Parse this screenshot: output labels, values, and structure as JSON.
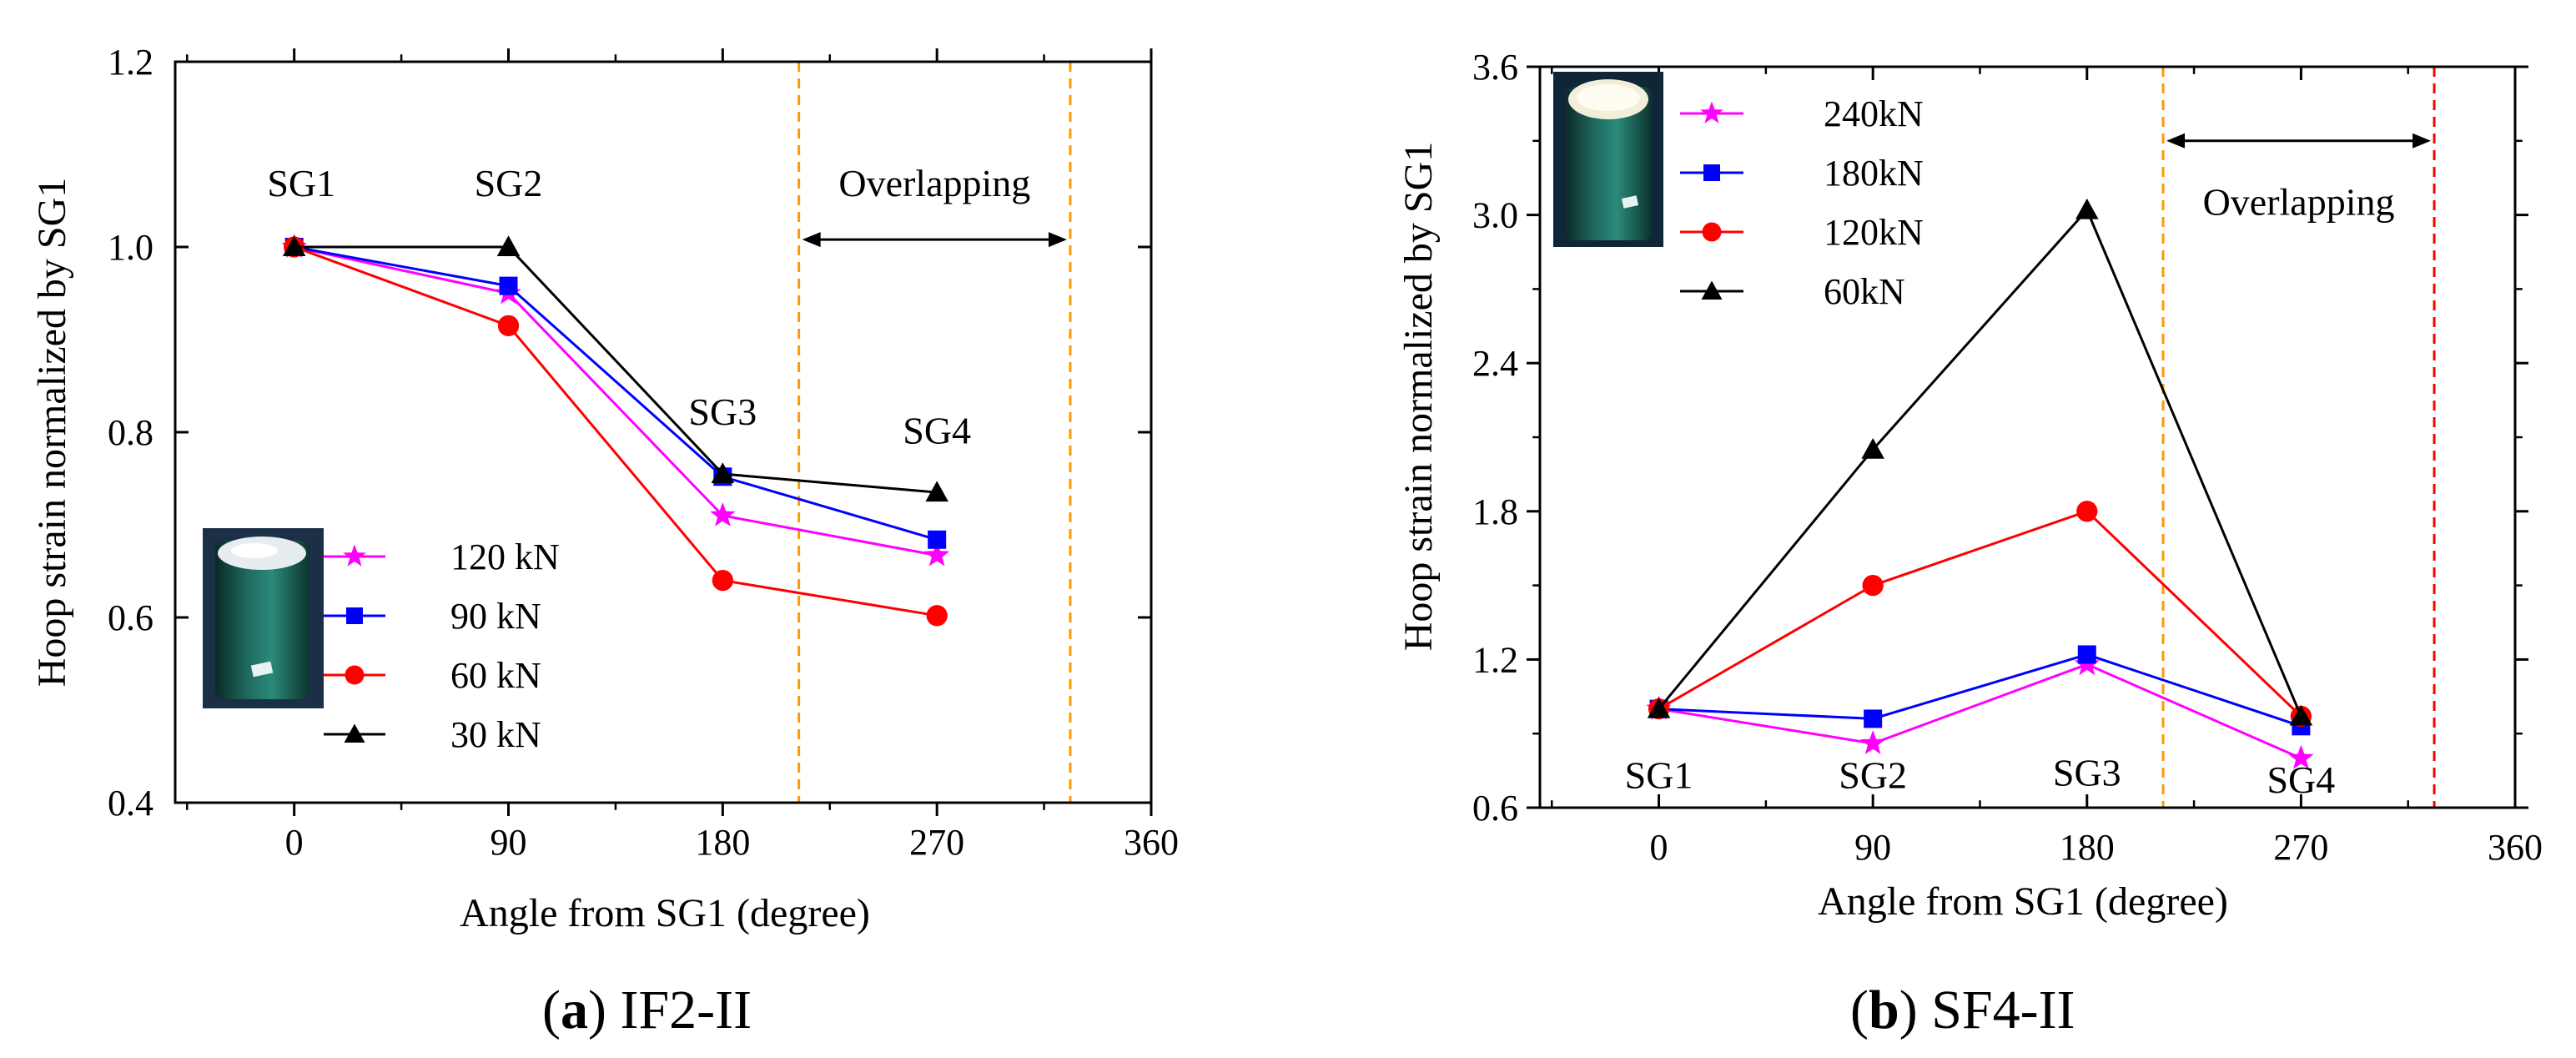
{
  "chart_data": [
    {
      "type": "line",
      "panel": "a",
      "caption_letter": "a",
      "caption_text": "IF2-II",
      "xlabel": "Angle from SG1 (degree)",
      "ylabel": "Hoop strain normalized by SG1",
      "xlim": [
        -50,
        360
      ],
      "ylim": [
        0.4,
        1.2
      ],
      "xticks": [
        0,
        90,
        180,
        270,
        360
      ],
      "xtick_labels": [
        "0",
        "90",
        "180",
        "270",
        "360"
      ],
      "yticks": [
        0.4,
        0.6,
        0.8,
        1.0,
        1.2
      ],
      "ytick_labels": [
        "0.4",
        "0.6",
        "0.8",
        "1.0",
        "1.2"
      ],
      "x": [
        0,
        90,
        180,
        270
      ],
      "series": [
        {
          "name": "120 kN",
          "color": "#ff00ff",
          "marker": "star",
          "values": [
            1.0,
            0.95,
            0.71,
            0.667
          ]
        },
        {
          "name": "90 kN",
          "color": "#0000ff",
          "marker": "square",
          "values": [
            1.0,
            0.958,
            0.752,
            0.684
          ]
        },
        {
          "name": "60 kN",
          "color": "#ff0000",
          "marker": "circle",
          "values": [
            1.0,
            0.915,
            0.64,
            0.602
          ]
        },
        {
          "name": "30 kN",
          "color": "#000000",
          "marker": "triangle",
          "values": [
            1.0,
            1.0,
            0.755,
            0.735
          ]
        }
      ],
      "sg_labels": [
        {
          "text": "SG1",
          "x": 3,
          "y": 1.055
        },
        {
          "text": "SG2",
          "x": 90,
          "y": 1.055
        },
        {
          "text": "SG3",
          "x": 180,
          "y": 0.808
        },
        {
          "text": "SG4",
          "x": 270,
          "y": 0.788
        }
      ],
      "vlines": [
        {
          "x": 212,
          "color": "#ff9900"
        },
        {
          "x": 326,
          "color": "#ff9900"
        }
      ],
      "overlap_label": "Overlapping",
      "overlap_range": [
        212,
        326
      ],
      "overlap_y": 1.008,
      "overlap_label_y": 1.055
    },
    {
      "type": "line",
      "panel": "b",
      "caption_letter": "b",
      "caption_text": "SF4-II",
      "xlabel": "Angle from SG1 (degree)",
      "ylabel": "Hoop strain normalized by SG1",
      "xlim": [
        -50,
        360
      ],
      "ylim": [
        0.6,
        3.6
      ],
      "xticks": [
        0,
        90,
        180,
        270,
        360
      ],
      "xtick_labels": [
        "0",
        "90",
        "180",
        "270",
        "360"
      ],
      "yticks": [
        0.6,
        1.2,
        1.8,
        2.4,
        3.0,
        3.6
      ],
      "ytick_labels": [
        "0.6",
        "1.2",
        "1.8",
        "2.4",
        "3.0",
        "3.6"
      ],
      "x": [
        0,
        90,
        180,
        270
      ],
      "series": [
        {
          "name": "240kN",
          "color": "#ff00ff",
          "marker": "star",
          "values": [
            1.0,
            0.86,
            1.18,
            0.8
          ]
        },
        {
          "name": "180kN",
          "color": "#0000ff",
          "marker": "square",
          "values": [
            1.0,
            0.96,
            1.22,
            0.93
          ]
        },
        {
          "name": "120kN",
          "color": "#ff0000",
          "marker": "circle",
          "values": [
            1.0,
            1.5,
            1.8,
            0.97
          ]
        },
        {
          "name": "60kN",
          "color": "#000000",
          "marker": "triangle",
          "values": [
            1.0,
            2.05,
            3.02,
            0.97
          ]
        }
      ],
      "sg_labels": [
        {
          "text": "SG1",
          "x": 0,
          "y": 0.68
        },
        {
          "text": "SG2",
          "x": 90,
          "y": 0.68
        },
        {
          "text": "SG3",
          "x": 180,
          "y": 0.69
        },
        {
          "text": "SG4",
          "x": 270,
          "y": 0.66
        }
      ],
      "vlines": [
        {
          "x": 212,
          "color": "#ff9900"
        },
        {
          "x": 326,
          "color": "#ff0000"
        }
      ],
      "overlap_label": "Overlapping",
      "overlap_range": [
        212,
        326
      ],
      "overlap_y": 3.3,
      "overlap_label_y": 3.0
    }
  ]
}
